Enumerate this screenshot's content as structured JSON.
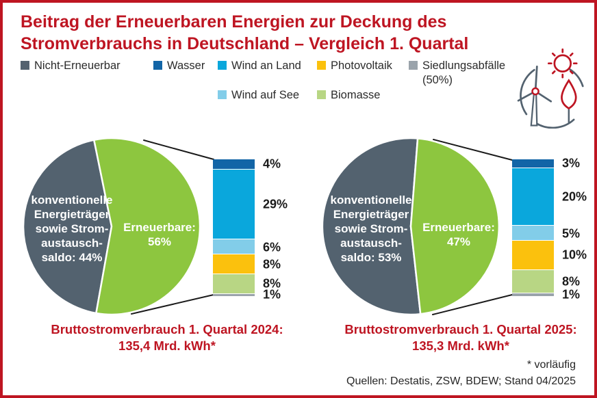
{
  "title": "Beitrag der Erneuerbaren Energien zur Deckung des\nStromverbrauchs in Deutschland – Vergleich 1. Quartal",
  "header_icon": "wind-turbine-sun-leaf-icon",
  "colors": {
    "accent_red": "#BE1522",
    "non_renewable_slate": "#53626F",
    "renewable_green": "#8DC63F"
  },
  "legend": {
    "row1": [
      {
        "label": "Nicht-Erneuerbar",
        "color": "#53626F"
      },
      {
        "label": "Wasser",
        "color": "#1265A7"
      },
      {
        "label": "Wind an Land",
        "color": "#0AA7DC"
      },
      {
        "label": "Photovoltaik",
        "color": "#FBC10D"
      },
      {
        "label": "Siedlungsabfälle\n(50%)",
        "color": "#9AA3AB"
      }
    ],
    "row2": [
      {
        "label": "Wind auf See",
        "color": "#82CDE9"
      },
      {
        "label": "Biomasse",
        "color": "#B8D684"
      }
    ]
  },
  "chart_data": [
    {
      "type": "pie",
      "period": "1. Quartal 2024",
      "caption": "Bruttostromverbrauch 1. Quartal 2024:\n135,4 Mrd. kWh*",
      "slices": [
        {
          "name": "Nicht-Erneuerbar",
          "value": 44,
          "color": "#53626F",
          "label": "konventionelle\nEnergieträger\nsowie Strom-\naustausch-\nsaldo: 44%"
        },
        {
          "name": "Erneuerbare",
          "value": 56,
          "color": "#8DC63F",
          "label": "Erneuerbare:\n56%"
        }
      ],
      "breakdown": {
        "type": "stacked-bar",
        "categories": [
          "Wasser",
          "Wind an Land",
          "Wind auf See",
          "Photovoltaik",
          "Biomasse",
          "Siedlungsabfälle (50%)"
        ],
        "values": [
          4,
          29,
          6,
          8,
          8,
          1
        ],
        "labels": [
          "4%",
          "29%",
          "6%",
          "8%",
          "8%",
          "1%"
        ],
        "colors": [
          "#1265A7",
          "#0AA7DC",
          "#82CDE9",
          "#FBC10D",
          "#B8D684",
          "#9AA3AB"
        ]
      }
    },
    {
      "type": "pie",
      "period": "1. Quartal 2025",
      "caption": "Bruttostromverbrauch 1. Quartal 2025:\n135,3 Mrd. kWh*",
      "slices": [
        {
          "name": "Nicht-Erneuerbar",
          "value": 53,
          "color": "#53626F",
          "label": "konventionelle\nEnergieträger\nsowie Strom-\naustausch-\nsaldo: 53%"
        },
        {
          "name": "Erneuerbare",
          "value": 47,
          "color": "#8DC63F",
          "label": "Erneuerbare:\n47%"
        }
      ],
      "breakdown": {
        "type": "stacked-bar",
        "categories": [
          "Wasser",
          "Wind an Land",
          "Wind auf See",
          "Photovoltaik",
          "Biomasse",
          "Siedlungsabfälle (50%)"
        ],
        "values": [
          3,
          20,
          5,
          10,
          8,
          1
        ],
        "labels": [
          "3%",
          "20%",
          "5%",
          "10%",
          "8%",
          "1%"
        ],
        "colors": [
          "#1265A7",
          "#0AA7DC",
          "#82CDE9",
          "#FBC10D",
          "#B8D684",
          "#9AA3AB"
        ]
      }
    }
  ],
  "footnote": "* vorläufig",
  "sources": "Quellen: Destatis, ZSW, BDEW; Stand 04/2025"
}
